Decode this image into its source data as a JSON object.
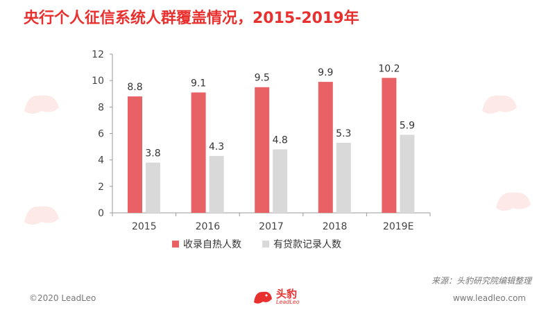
{
  "title": "央行个人征信系统人群覆盖情况，2015-2019年",
  "source": "来源：头豹研究院编辑整理",
  "footer": {
    "copyright": "©2020 LeadLeo",
    "website": "www.leadleo.com",
    "logo_cn": "头豹",
    "logo_en": "LeadLeo"
  },
  "colors": {
    "accent": "#e8302e",
    "series1": "#e86265",
    "series2": "#d9d9d9"
  },
  "chart_data": {
    "type": "bar",
    "categories": [
      "2015",
      "2016",
      "2017",
      "2018",
      "2019E"
    ],
    "series": [
      {
        "name": "收录自热人数",
        "values": [
          8.8,
          9.1,
          9.5,
          9.9,
          10.2
        ],
        "color": "#e86265"
      },
      {
        "name": "有贷款记录人数",
        "values": [
          3.8,
          4.3,
          4.8,
          5.3,
          5.9
        ],
        "color": "#d9d9d9"
      }
    ],
    "ylim": [
      0,
      12
    ],
    "yticks": [
      0,
      2,
      4,
      6,
      8,
      10,
      12
    ],
    "grid": false,
    "legend": "bottom"
  }
}
